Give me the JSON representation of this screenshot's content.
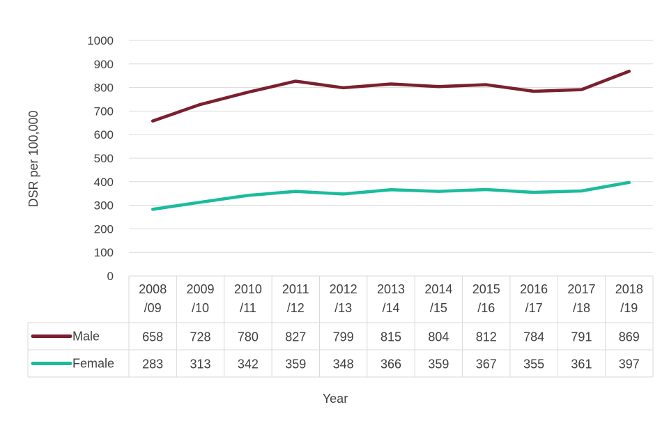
{
  "chart_data": {
    "type": "line",
    "title": "",
    "xlabel": "Year",
    "ylabel": "DSR per 100,000",
    "ylim": [
      0,
      1000
    ],
    "yticks": [
      0,
      100,
      200,
      300,
      400,
      500,
      600,
      700,
      800,
      900,
      1000
    ],
    "grid": true,
    "legend": "data-table",
    "categories": [
      [
        "2008",
        "/09"
      ],
      [
        "2009",
        "/10"
      ],
      [
        "2010",
        "/11"
      ],
      [
        "2011",
        "/12"
      ],
      [
        "2012",
        "/13"
      ],
      [
        "2013",
        "/14"
      ],
      [
        "2014",
        "/15"
      ],
      [
        "2015",
        "/16"
      ],
      [
        "2016",
        "/17"
      ],
      [
        "2017",
        "/18"
      ],
      [
        "2018",
        "/19"
      ]
    ],
    "series": [
      {
        "name": "Male",
        "color": "#7b1f2e",
        "values": [
          658,
          728,
          780,
          827,
          799,
          815,
          804,
          812,
          784,
          791,
          869
        ]
      },
      {
        "name": "Female",
        "color": "#1abc9c",
        "values": [
          283,
          313,
          342,
          359,
          348,
          366,
          359,
          367,
          355,
          361,
          397
        ]
      }
    ]
  }
}
